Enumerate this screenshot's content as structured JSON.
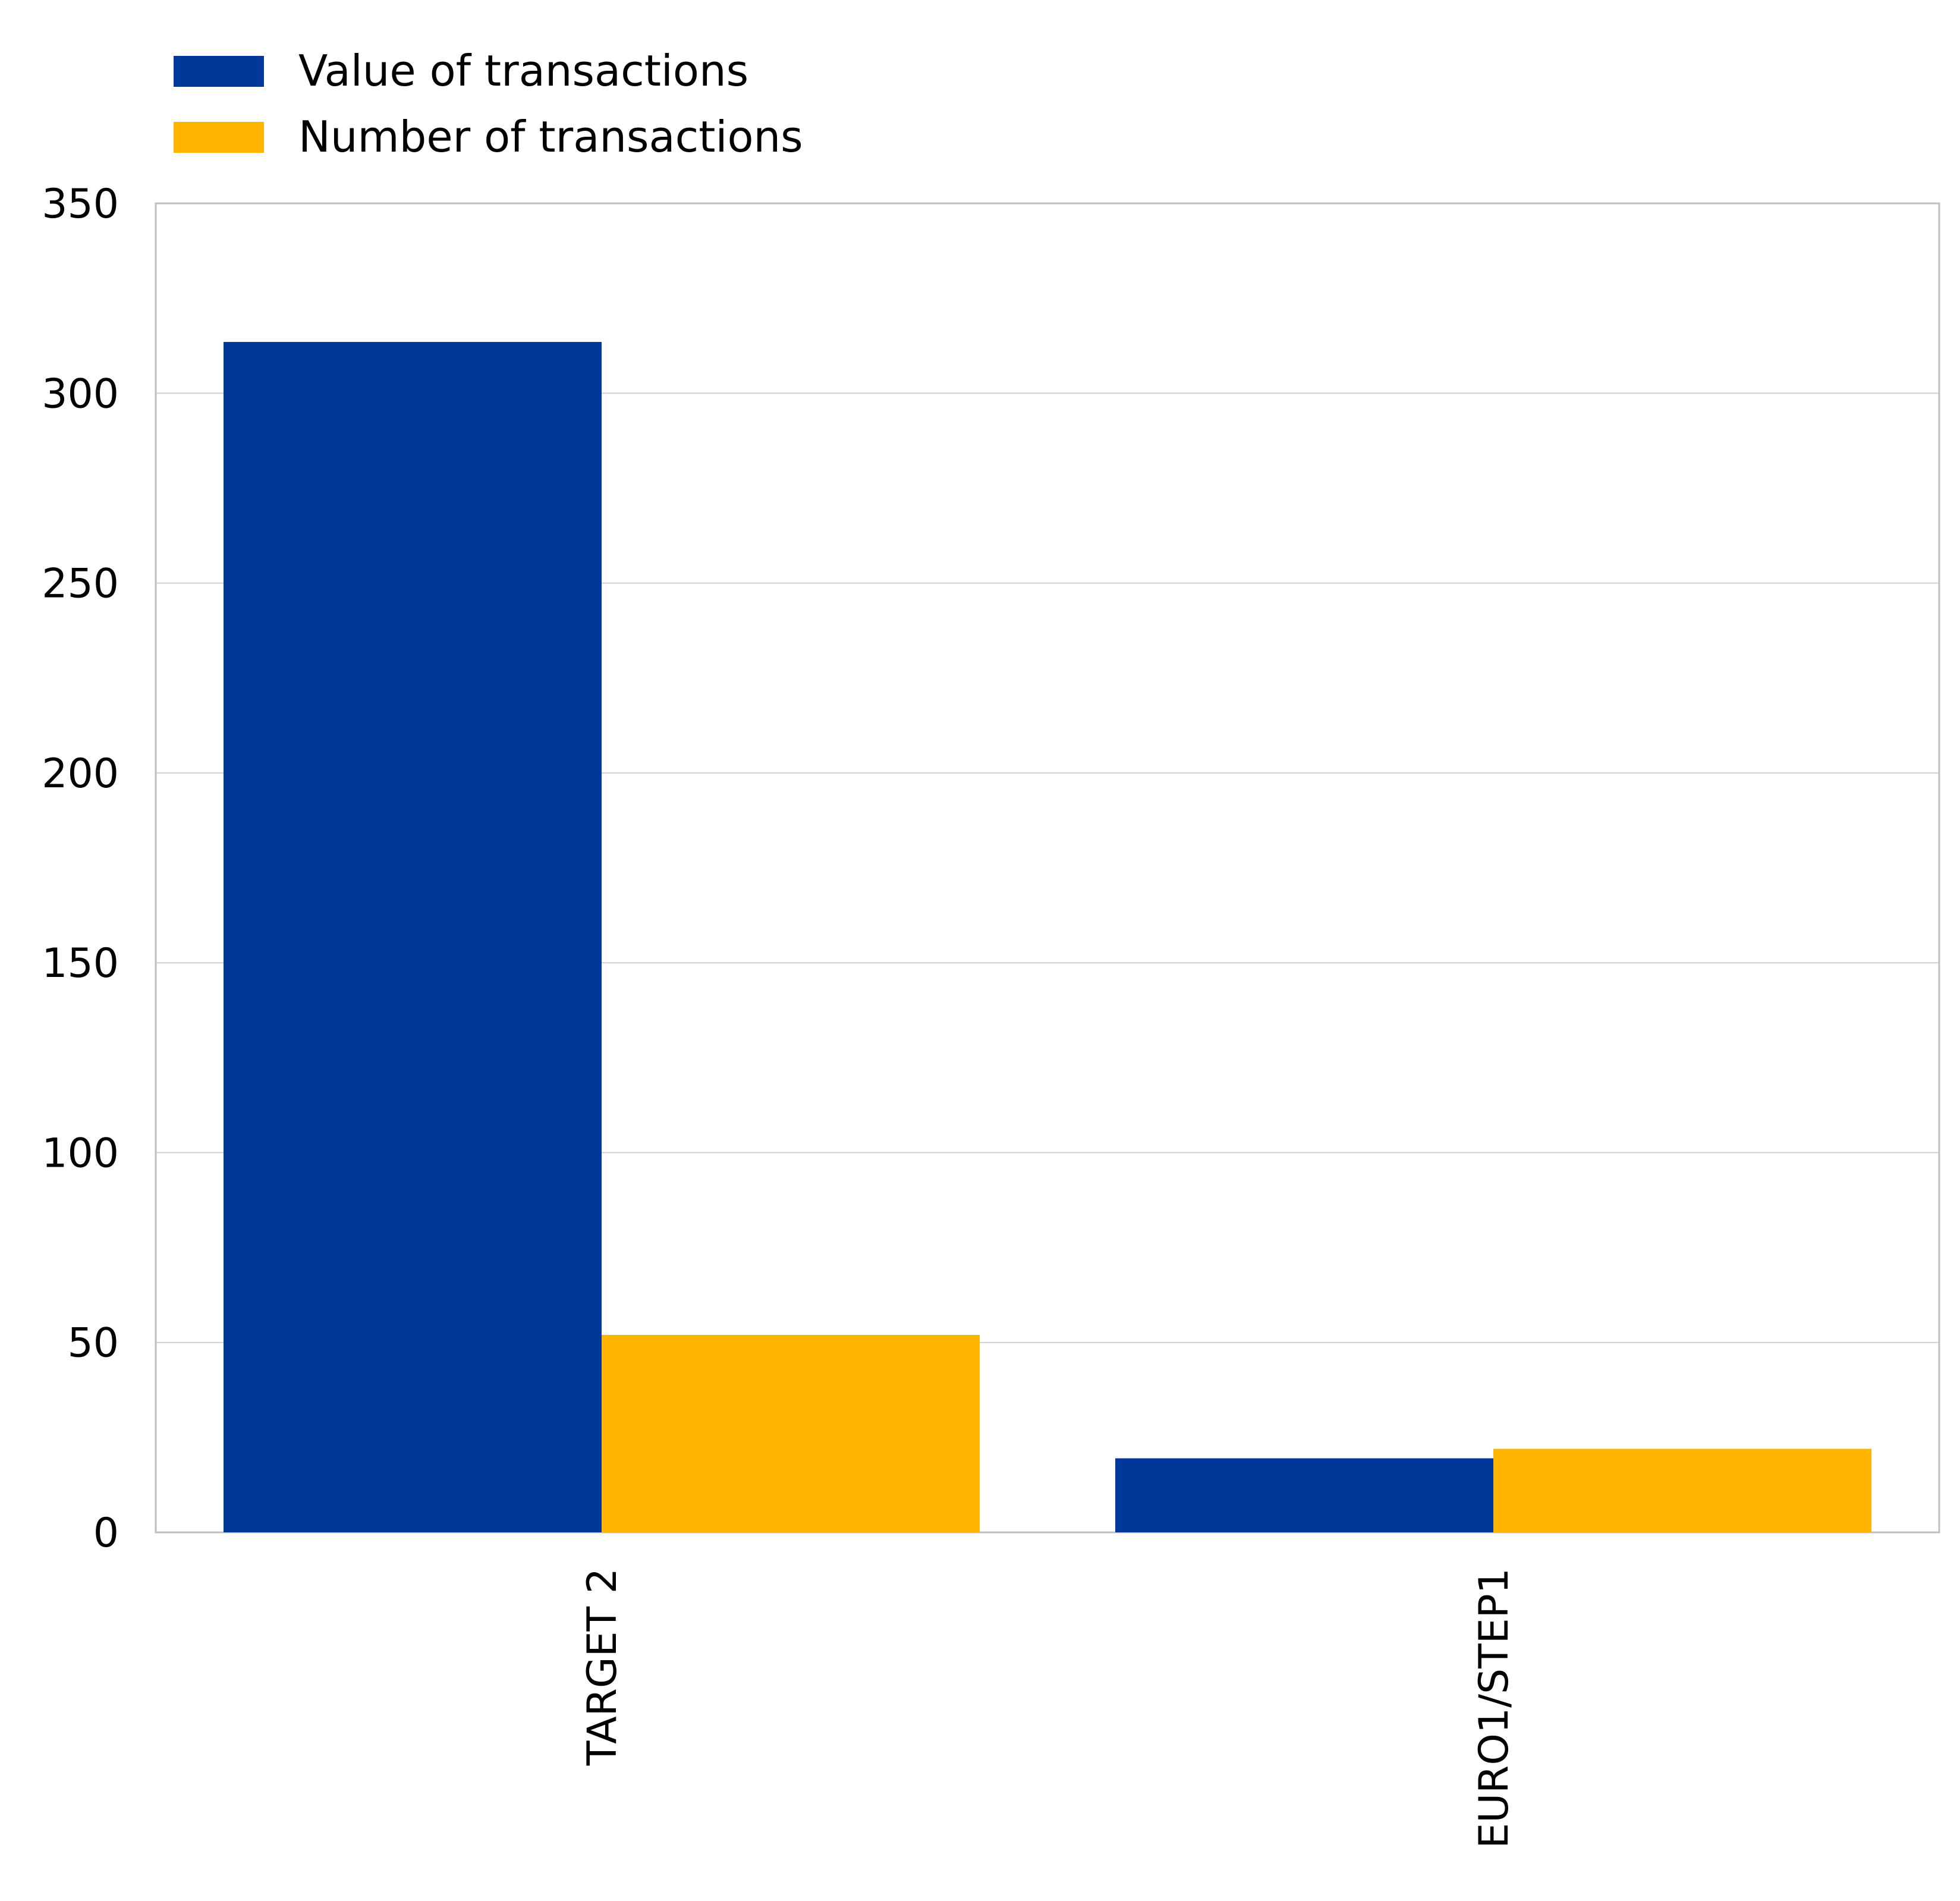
{
  "chart_data": {
    "type": "bar",
    "categories": [
      "TARGET 2",
      "EURO1/STEP1"
    ],
    "series": [
      {
        "name": "Value of transactions",
        "color": "#003899",
        "values": [
          313.5,
          19.5
        ]
      },
      {
        "name": "Number of transactions",
        "color": "#FFB400",
        "values": [
          52,
          22
        ]
      }
    ],
    "ylim": [
      0,
      350
    ],
    "yticks": [
      0,
      50,
      100,
      150,
      200,
      250,
      300,
      350
    ],
    "grid": true,
    "legend_position": "top-left",
    "xlabel": "",
    "ylabel": "",
    "title": ""
  }
}
